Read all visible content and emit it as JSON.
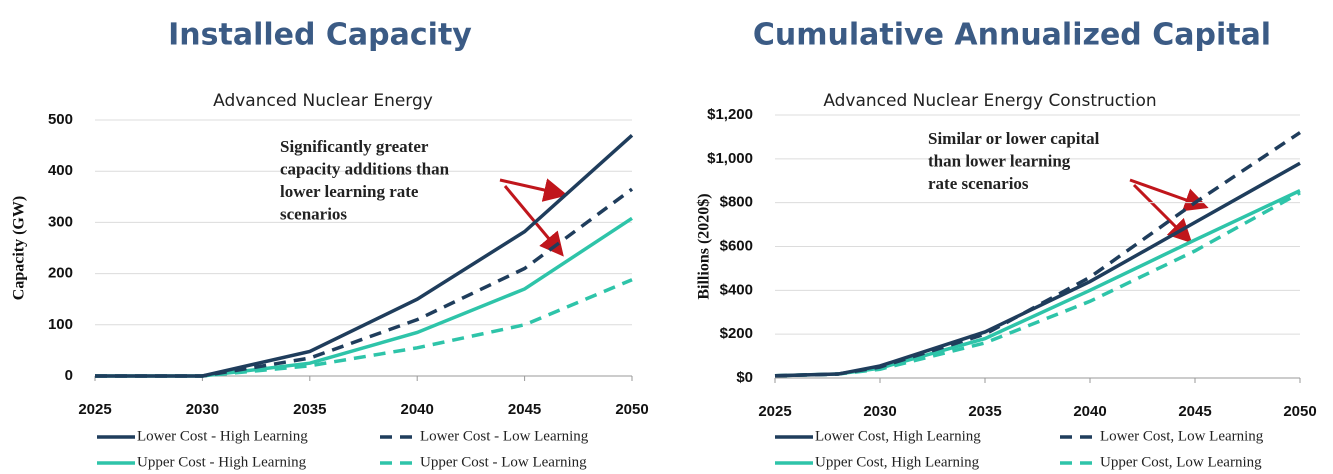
{
  "chart_data": [
    {
      "type": "line",
      "heading": "Installed Capacity",
      "title": "Advanced Nuclear Energy",
      "y_label": "Capacity (GW)",
      "annotation": [
        "Significantly greater",
        "capacity additions than",
        "lower learning rate",
        "scenarios"
      ],
      "x": [
        2025,
        2030,
        2035,
        2040,
        2045,
        2050
      ],
      "xlim": [
        2025,
        2050
      ],
      "xticks": [
        2025,
        2030,
        2035,
        2040,
        2045,
        2050
      ],
      "ylim": [
        0,
        500
      ],
      "yticks": [
        0,
        100,
        200,
        300,
        400,
        500
      ],
      "grid": true,
      "series": [
        {
          "name": "Lower Cost - High Learning",
          "color": "#1f3d5c",
          "style": "solid",
          "values": [
            0,
            0,
            48,
            150,
            282,
            470
          ]
        },
        {
          "name": "Lower Cost - Low Learning",
          "color": "#1f3d5c",
          "style": "dashed",
          "values": [
            0,
            0,
            35,
            110,
            210,
            365
          ]
        },
        {
          "name": "Upper Cost - High Learning",
          "color": "#2ec4a9",
          "style": "solid",
          "values": [
            0,
            0,
            25,
            85,
            170,
            308
          ]
        },
        {
          "name": "Upper Cost - Low Learning",
          "color": "#2ec4a9",
          "style": "dashed",
          "values": [
            0,
            0,
            20,
            55,
            100,
            188
          ]
        }
      ]
    },
    {
      "type": "line",
      "heading": "Cumulative Annualized Capital",
      "title": "Advanced Nuclear Energy Construction",
      "y_label": "Billions (2020$)",
      "annotation": [
        "Similar or lower capital",
        "than lower learning",
        "rate scenarios"
      ],
      "x": [
        2025,
        2028,
        2030,
        2035,
        2040,
        2045,
        2050
      ],
      "xlim": [
        2025,
        2050
      ],
      "xticks": [
        2025,
        2030,
        2035,
        2040,
        2045,
        2050
      ],
      "ylim": [
        0,
        1200
      ],
      "yticks": [
        {
          "value": 0,
          "label": "$0"
        },
        {
          "value": 200,
          "label": "$200"
        },
        {
          "value": 400,
          "label": "$400"
        },
        {
          "value": 600,
          "label": "$600"
        },
        {
          "value": 800,
          "label": "$800"
        },
        {
          "value": 1000,
          "label": "$1,000"
        },
        {
          "value": 1200,
          "label": "$1,200"
        }
      ],
      "grid": true,
      "series": [
        {
          "name": "Lower Cost, High Learning",
          "color": "#1f3d5c",
          "style": "solid",
          "values": [
            10,
            18,
            55,
            210,
            440,
            710,
            980
          ]
        },
        {
          "name": "Lower Cost, Low Learning",
          "color": "#1f3d5c",
          "style": "dashed",
          "values": [
            10,
            18,
            50,
            200,
            460,
            800,
            1120
          ]
        },
        {
          "name": "Upper Cost, High Learning",
          "color": "#2ec4a9",
          "style": "solid",
          "values": [
            10,
            18,
            45,
            180,
            400,
            630,
            855
          ]
        },
        {
          "name": "Upper Cost, Low Learning",
          "color": "#2ec4a9",
          "style": "dashed",
          "values": [
            10,
            18,
            40,
            160,
            350,
            580,
            845
          ]
        }
      ]
    }
  ]
}
